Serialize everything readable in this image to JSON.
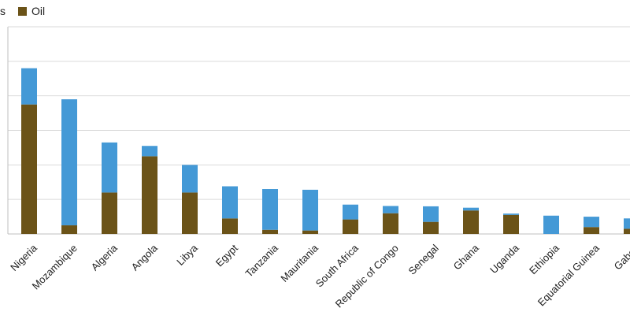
{
  "chart_data": {
    "type": "bar",
    "stacked": true,
    "categories": [
      "Nigeria",
      "Mozambique",
      "Algeria",
      "Angola",
      "Libya",
      "Egypt",
      "Tanzania",
      "Mauritania",
      "South Africa",
      "Republic of Congo",
      "Senegal",
      "Ghana",
      "Uganda",
      "Ethiopia",
      "Equatorial Guinea",
      "Gabon"
    ],
    "series": [
      {
        "name": "Oil",
        "color": "#6b5318",
        "values": [
          37.5,
          2.5,
          12.0,
          22.5,
          12.0,
          4.5,
          1.2,
          1.0,
          4.2,
          6.0,
          3.5,
          6.8,
          5.5,
          0.0,
          2.0,
          1.5
        ]
      },
      {
        "name": "",
        "color": "#4499d6",
        "values": [
          10.5,
          36.5,
          14.5,
          3.0,
          8.0,
          9.3,
          11.8,
          11.8,
          4.3,
          2.1,
          4.5,
          0.8,
          0.4,
          5.3,
          3.0,
          3.0
        ]
      }
    ],
    "legend": {
      "placement": "top-left",
      "entries": [
        "s",
        "Oil"
      ]
    },
    "ylim": [
      0,
      60
    ],
    "grid": true,
    "x_tick_rotation": -45,
    "title": "",
    "xlabel": "",
    "ylabel": ""
  }
}
